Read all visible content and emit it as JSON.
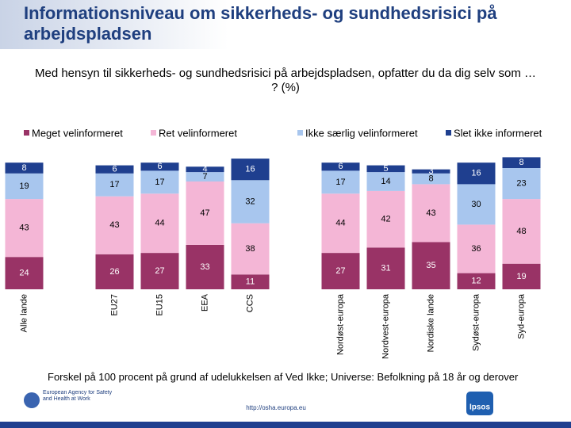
{
  "chart_data": {
    "type": "stacked_bar",
    "title": "Informationsniveau om sikkerheds- og sundhedsrisici på arbejdspladsen",
    "subtitle": "Med hensyn til sikkerheds- og sundhedsrisici på arbejdspladsen, opfatter du da dig selv som … ? (%)",
    "categories": [
      "Alle lande",
      null,
      "EU27",
      "EU15",
      "EEA",
      "CCS",
      null,
      "Nordøst-europa",
      "Nordvest-europa",
      "Nordiske lande",
      "Sydøst-europa",
      "Syd-europa"
    ],
    "series": [
      {
        "name": "Meget velinformeret",
        "color": "#993366",
        "values": [
          24,
          null,
          26,
          27,
          33,
          11,
          null,
          27,
          31,
          35,
          12,
          19
        ]
      },
      {
        "name": "Ret velinformeret",
        "color": "#f4b6d6",
        "values": [
          43,
          null,
          43,
          44,
          47,
          38,
          null,
          44,
          42,
          43,
          36,
          48
        ]
      },
      {
        "name": "Ikke særlig velinformeret",
        "color": "#a8c6ee",
        "values": [
          19,
          null,
          17,
          17,
          7,
          32,
          null,
          17,
          14,
          8,
          30,
          23
        ]
      },
      {
        "name": "Slet ikke informeret",
        "color": "#1f3f8f",
        "values": [
          8,
          null,
          6,
          6,
          4,
          16,
          null,
          6,
          5,
          3,
          16,
          8
        ]
      }
    ],
    "ylim": [
      0,
      100
    ],
    "note": "Forskel på 100 procent på grund af udelukkelsen af Ved Ikke; Universe: Befolkning på 18 år og derover",
    "footer": {
      "agency": "European Agency for Safety and Health at Work",
      "url": "http://osha.europa.eu",
      "brand": "Ipsos"
    }
  }
}
